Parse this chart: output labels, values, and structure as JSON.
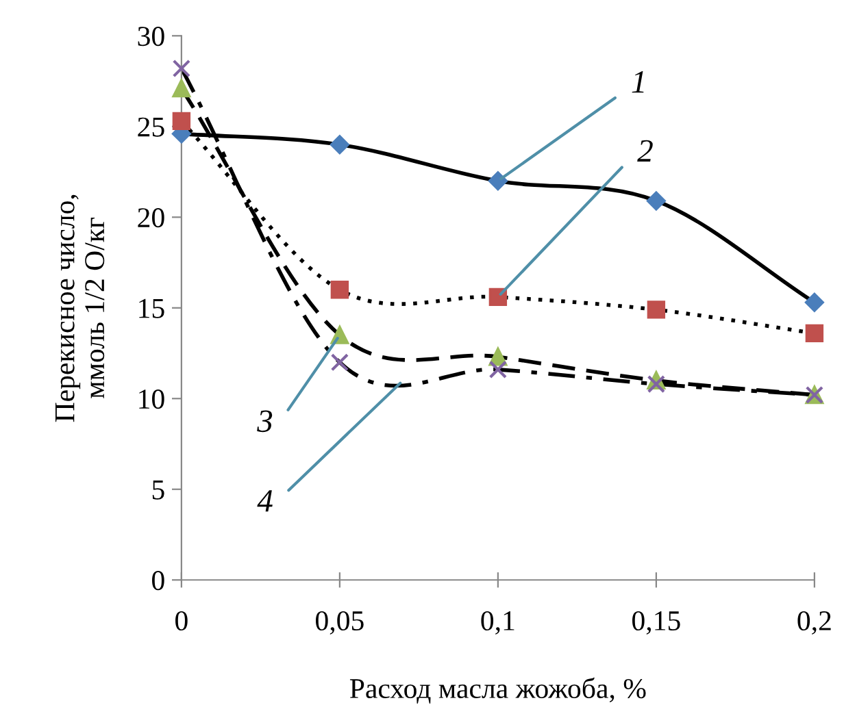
{
  "chart_data": {
    "type": "line",
    "xlabel": "Расход масла жожоба, %",
    "ylabel": "Перекисное число,\nммоль 1/2 О/кг",
    "x": [
      0,
      0.05,
      0.1,
      0.15,
      0.2
    ],
    "series": [
      {
        "color": "#4a7ebb",
        "marker": "diamond",
        "line_style": "solid",
        "values": [
          24.6,
          24.0,
          22.0,
          20.9,
          15.3
        ]
      },
      {
        "color": "#c0504d",
        "marker": "square",
        "line_style": "dotted",
        "values": [
          25.3,
          16.0,
          15.6,
          14.9,
          13.6
        ]
      },
      {
        "color": "#9bbb59",
        "marker": "triangle",
        "line_style": "dashed",
        "values": [
          27.1,
          13.5,
          12.3,
          11.0,
          10.2
        ]
      },
      {
        "color": "#8064a2",
        "marker": "cross",
        "line_style": "dashdot",
        "values": [
          28.2,
          12.0,
          11.6,
          10.8,
          10.2
        ]
      }
    ],
    "annotations": [
      {
        "text": "1",
        "x": 0.1,
        "y": 22.0
      },
      {
        "text": "2",
        "x": 0.1,
        "y": 15.6
      },
      {
        "text": "3",
        "x": 0.05,
        "y": 13.5
      },
      {
        "text": "4",
        "x": 0.07,
        "y": 11.0
      }
    ],
    "xlim": [
      0,
      0.2
    ],
    "xticks": [
      0,
      {
        "value": 0.05,
        "label": "0,05"
      },
      {
        "value": 0.1,
        "label": "0,1"
      },
      {
        "value": 0.15,
        "label": "0,15"
      },
      {
        "value": 0.2,
        "label": "0,2"
      }
    ],
    "ylim": [
      0,
      30
    ],
    "yticks": [
      0,
      5,
      10,
      15,
      20,
      25,
      30
    ],
    "grid": false,
    "legend": false
  }
}
